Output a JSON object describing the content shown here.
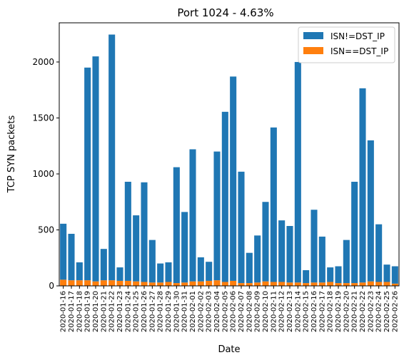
{
  "chart_data": {
    "type": "bar",
    "stacked": true,
    "title": "Port 1024 - 4.63%",
    "xlabel": "Date",
    "ylabel": "TCP SYN packets",
    "ylim": [
      0,
      2350
    ],
    "yticks": [
      0,
      500,
      1000,
      1500,
      2000
    ],
    "grid": false,
    "legend_position": "top-right",
    "categories": [
      "2020-01-16",
      "2020-01-17",
      "2020-01-18",
      "2020-01-19",
      "2020-01-20",
      "2020-01-21",
      "2020-01-22",
      "2020-01-23",
      "2020-01-24",
      "2020-01-25",
      "2020-01-26",
      "2020-01-27",
      "2020-01-28",
      "2020-01-29",
      "2020-01-30",
      "2020-01-31",
      "2020-02-01",
      "2020-02-02",
      "2020-02-03",
      "2020-02-04",
      "2020-02-05",
      "2020-02-06",
      "2020-02-07",
      "2020-02-08",
      "2020-02-09",
      "2020-02-10",
      "2020-02-11",
      "2020-02-12",
      "2020-02-13",
      "2020-02-14",
      "2020-02-15",
      "2020-02-16",
      "2020-02-17",
      "2020-02-18",
      "2020-02-19",
      "2020-02-20",
      "2020-02-21",
      "2020-02-22",
      "2020-02-23",
      "2020-02-24",
      "2020-02-25",
      "2020-02-26"
    ],
    "series": [
      {
        "name": "ISN==DST_IP",
        "color": "#ff7f0e",
        "values": [
          55,
          50,
          50,
          50,
          40,
          50,
          50,
          45,
          45,
          40,
          35,
          30,
          30,
          35,
          25,
          30,
          40,
          40,
          45,
          50,
          35,
          45,
          25,
          25,
          30,
          40,
          35,
          35,
          30,
          30,
          25,
          30,
          30,
          35,
          25,
          25,
          25,
          30,
          40,
          35,
          35,
          20
        ]
      },
      {
        "name": "ISN!=DST_IP",
        "color": "#1f77b4",
        "values": [
          500,
          415,
          160,
          1900,
          2010,
          280,
          2195,
          120,
          885,
          590,
          890,
          380,
          170,
          175,
          1035,
          630,
          1180,
          215,
          170,
          1150,
          1520,
          1825,
          995,
          270,
          420,
          710,
          1380,
          550,
          505,
          1970,
          115,
          650,
          410,
          130,
          150,
          385,
          905,
          1735,
          1260,
          515,
          155,
          155
        ]
      }
    ]
  }
}
